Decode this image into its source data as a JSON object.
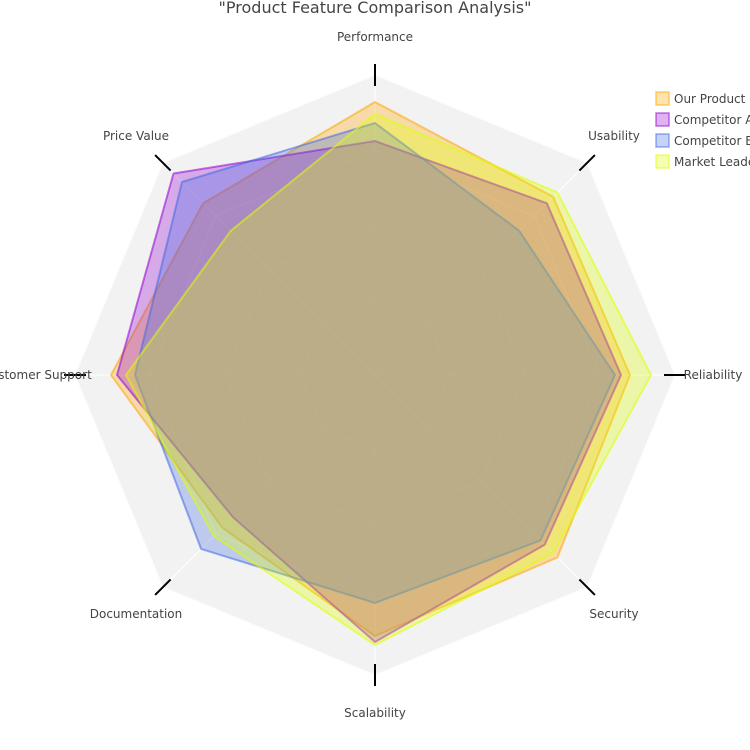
{
  "chart_data": {
    "type": "radar",
    "title": "\"Product Feature Comparison Analysis\"",
    "categories": [
      "Performance",
      "Usability",
      "Reliability",
      "Security",
      "Scalability",
      "Documentation",
      "Customer Support",
      "Price Value"
    ],
    "range": [
      0,
      100
    ],
    "grid": true,
    "legend_position": "top-right",
    "series": [
      {
        "name": "Our Product",
        "color": "#FFA500",
        "values": [
          91,
          84,
          85,
          86,
          87,
          72,
          88,
          81
        ]
      },
      {
        "name": "Competitor A",
        "color": "#9400D3",
        "values": [
          78,
          81,
          82,
          80,
          89,
          67,
          86,
          95
        ]
      },
      {
        "name": "Competitor B",
        "color": "#4169E1",
        "values": [
          84,
          68,
          80,
          78,
          76,
          82,
          80,
          91
        ]
      },
      {
        "name": "Market Leader",
        "color": "#DFFF00",
        "values": [
          87,
          86,
          92,
          84,
          90,
          76,
          83,
          68
        ]
      }
    ]
  }
}
